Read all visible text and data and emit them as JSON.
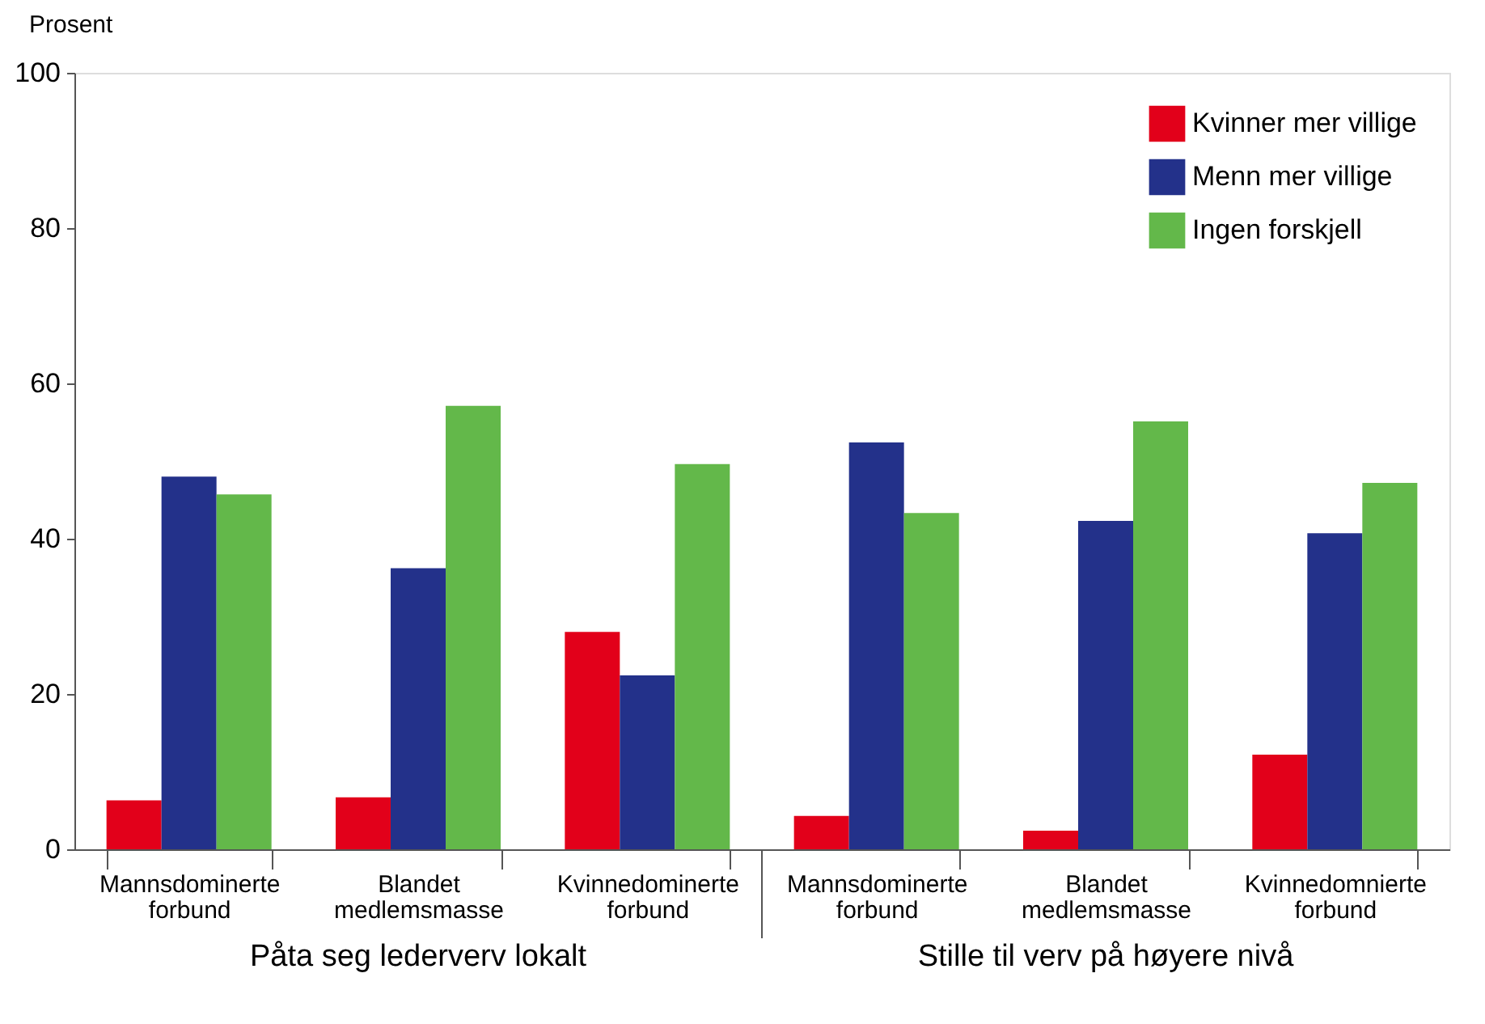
{
  "chart_data": {
    "type": "bar",
    "ylabel": "Prosent",
    "categories": [
      "Mannsdominerte forbund",
      "Blandet medlemsmasse",
      "Kvinnedominerte forbund",
      "Mannsdominerte forbund",
      "Blandet medlemsmasse",
      "Kvinnedomnierte forbund"
    ],
    "series": [
      {
        "name": "Kvinner mer villige",
        "color": "#e2001a",
        "values": [
          6.3,
          6.7,
          28.0,
          4.3,
          2.4,
          12.2
        ]
      },
      {
        "name": "Menn mer villige",
        "color": "#23318a",
        "values": [
          48.0,
          36.2,
          22.4,
          52.4,
          42.3,
          40.7
        ]
      },
      {
        "name": "Ingen forskjell",
        "color": "#63b84a",
        "values": [
          45.7,
          57.1,
          49.6,
          43.3,
          55.1,
          47.2
        ]
      }
    ],
    "annotations": [
      "Påta seg lederverv lokalt",
      "Stille til verv på høyere nivå"
    ],
    "ylim": [
      0,
      100
    ],
    "yticks": [
      0,
      20,
      40,
      60,
      80,
      100
    ],
    "grid": false,
    "legend": "top right"
  }
}
